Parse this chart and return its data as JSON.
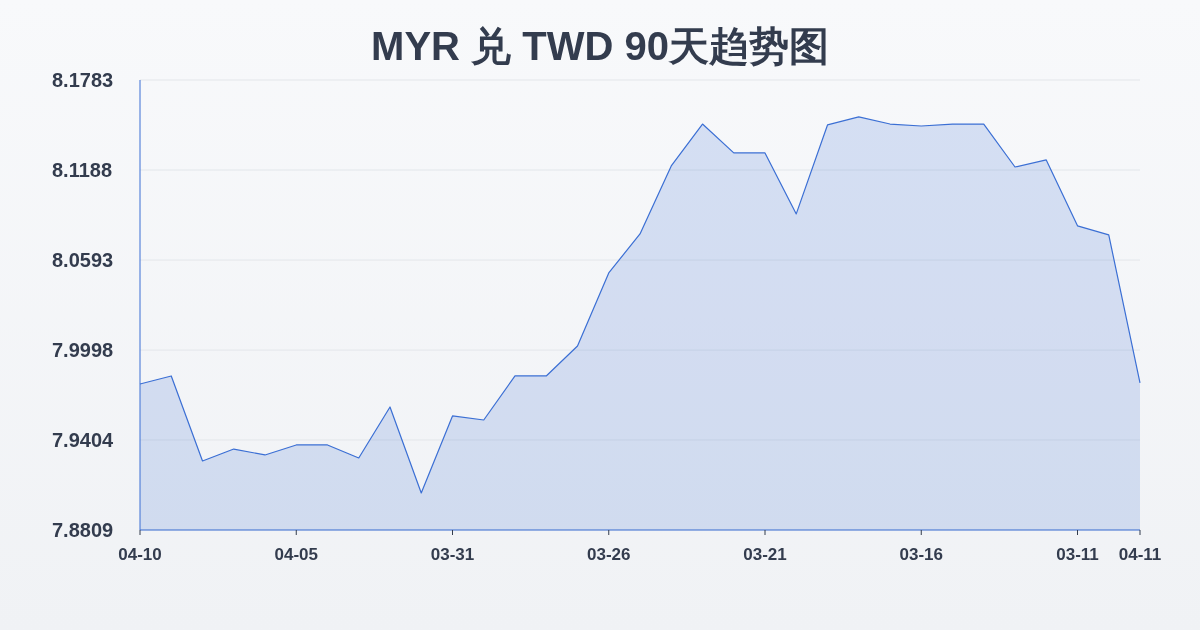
{
  "chart_data": {
    "type": "area",
    "title": "MYR 兑 TWD 90天趋势图",
    "categories": [
      "04-10",
      null,
      null,
      null,
      null,
      "04-05",
      null,
      null,
      null,
      null,
      "03-31",
      null,
      null,
      null,
      null,
      "03-26",
      null,
      null,
      null,
      null,
      "03-21",
      null,
      null,
      null,
      null,
      "03-16",
      null,
      null,
      null,
      null,
      "03-11",
      null,
      "04-11"
    ],
    "values": [
      7.9774,
      7.9827,
      7.9265,
      7.9344,
      7.9305,
      7.9371,
      7.9371,
      7.9285,
      7.9622,
      7.9054,
      7.9563,
      7.9536,
      7.9827,
      7.9827,
      8.0025,
      8.0508,
      8.0766,
      8.1215,
      8.1492,
      8.1301,
      8.1301,
      8.0898,
      8.1486,
      8.1539,
      8.1492,
      8.1479,
      8.1492,
      8.1492,
      8.1208,
      8.1255,
      8.0819,
      8.0759,
      7.9781
    ],
    "color": "#3b6fd4",
    "ylim": [
      7.8809,
      8.1783
    ],
    "yticks": [
      7.8809,
      7.9404,
      7.9998,
      8.0593,
      8.1188,
      8.1783
    ],
    "grid": "y"
  }
}
